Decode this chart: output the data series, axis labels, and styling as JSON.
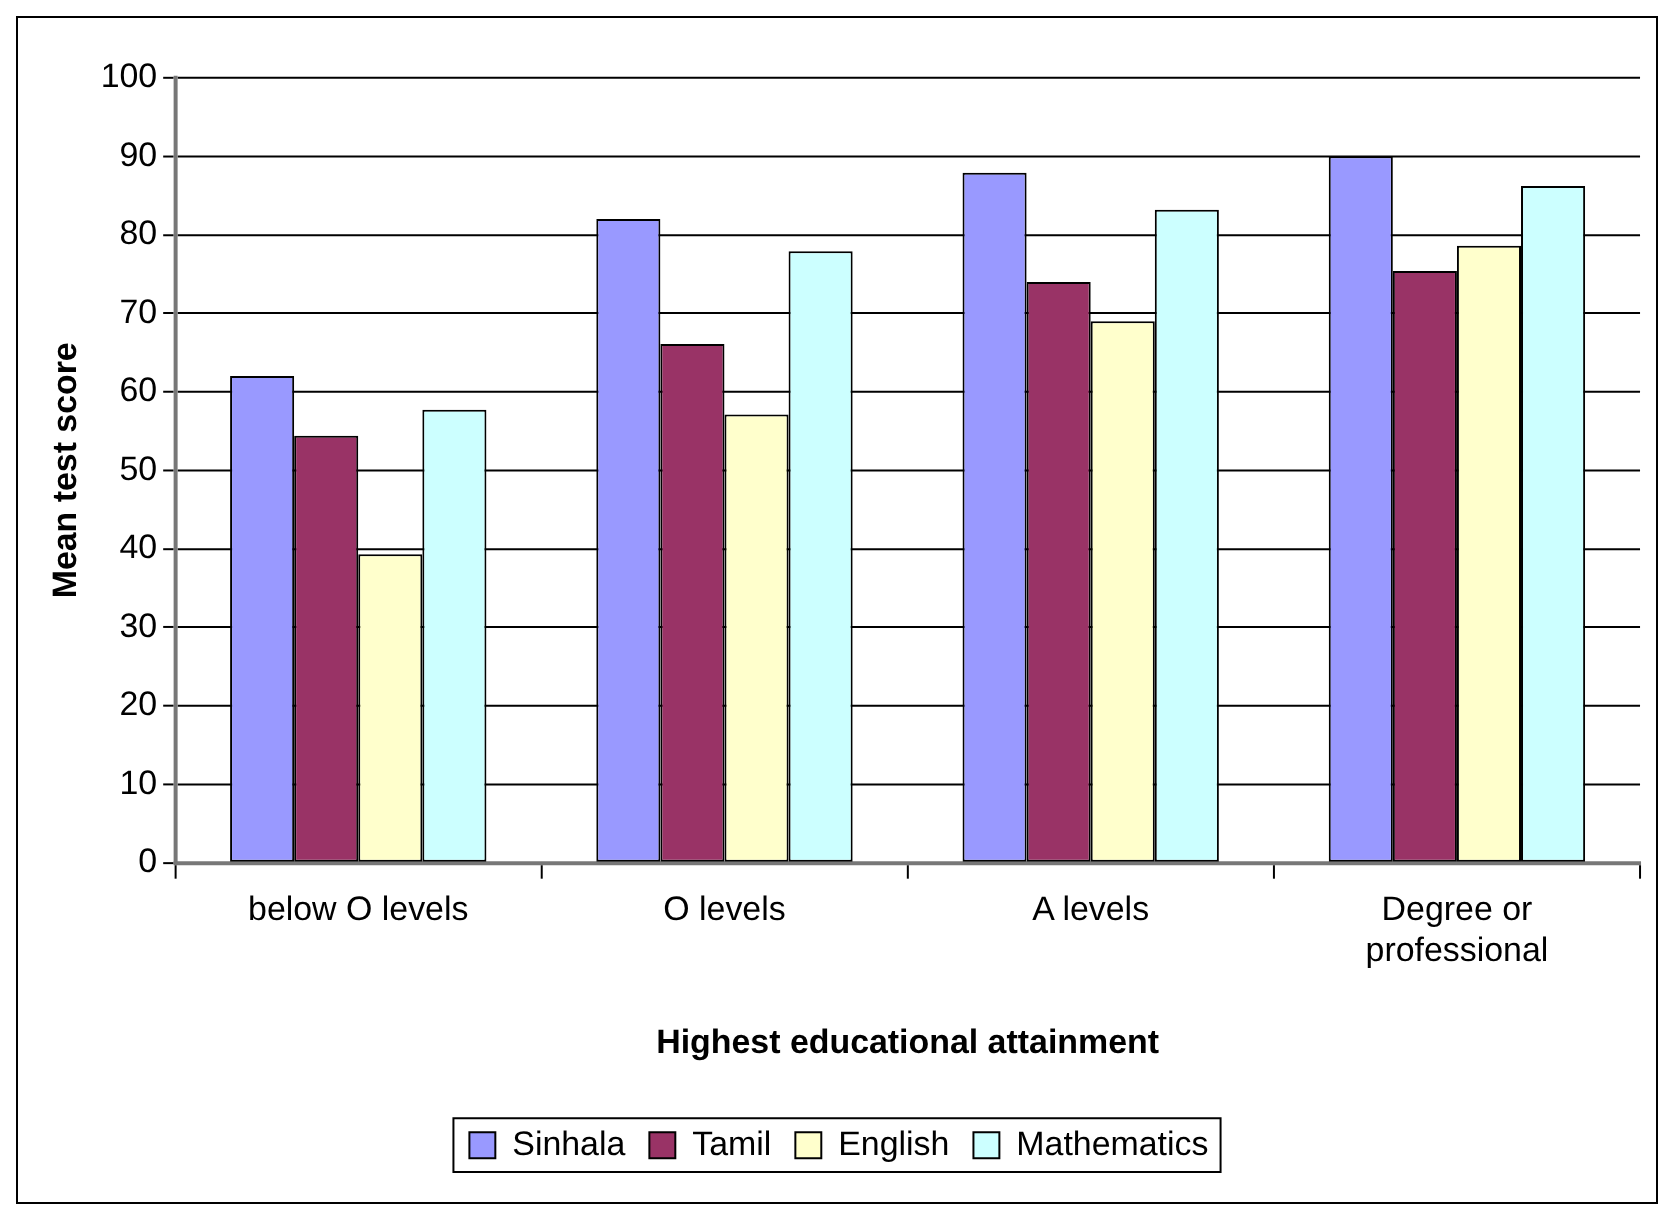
{
  "chart_data": {
    "type": "bar",
    "xlabel": "Highest educational attainment",
    "ylabel": "Mean test score",
    "categories": [
      "below O levels",
      "O levels",
      "A levels",
      "Degree or professional"
    ],
    "series": [
      {
        "name": "Sinhala",
        "color": "#9999ff",
        "values": [
          62,
          82,
          87.9,
          90
        ]
      },
      {
        "name": "Tamil",
        "color": "#993366",
        "values": [
          54.4,
          66.1,
          74,
          75.4
        ]
      },
      {
        "name": "English",
        "color": "#ffffcc",
        "values": [
          39.3,
          57.1,
          69,
          78.6
        ]
      },
      {
        "name": "Mathematics",
        "color": "#ccffff",
        "values": [
          57.7,
          77.9,
          83.2,
          86.2
        ]
      }
    ],
    "ylim": [
      0,
      100
    ],
    "yticks": [
      0,
      10,
      20,
      30,
      40,
      50,
      60,
      70,
      80,
      90,
      100
    ],
    "grid": "y",
    "legend": "bottom"
  }
}
